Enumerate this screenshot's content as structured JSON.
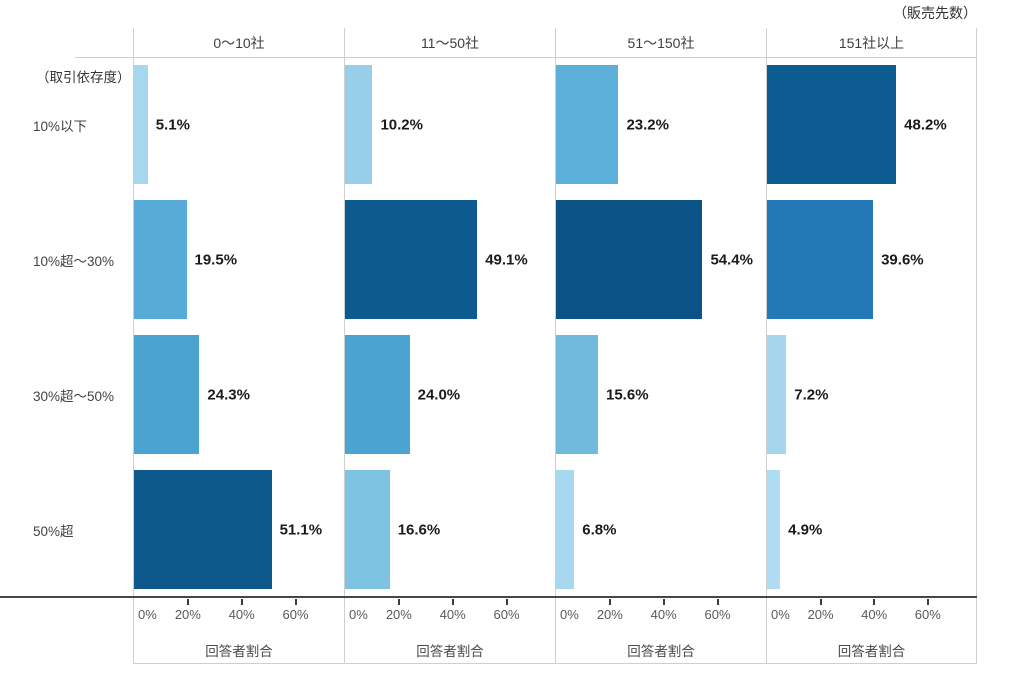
{
  "chart_data": {
    "type": "bar",
    "orientation": "horizontal",
    "corner_note": "（販売先数）",
    "y_axis_note": "（取引依存度）",
    "categories": [
      "10%以下",
      "10%超〜30%",
      "30%超〜50%",
      "50%超"
    ],
    "xlabel": "回答者割合",
    "x_ticks": [
      "0%",
      "20%",
      "40%",
      "60%"
    ],
    "x_tick_values": [
      0,
      20,
      40,
      60
    ],
    "xlim": [
      0,
      78
    ],
    "grid": false,
    "legend": false,
    "color_encoding": "darker blue = larger value",
    "panels": [
      {
        "title": "0〜10社",
        "values": [
          5.1,
          19.5,
          24.3,
          51.1
        ],
        "labels": [
          "5.1%",
          "19.5%",
          "24.3%",
          "51.1%"
        ],
        "colors": [
          "#a7d7ef",
          "#58abd6",
          "#4ba4cf",
          "#0e598c"
        ]
      },
      {
        "title": "11〜50社",
        "values": [
          10.2,
          49.1,
          24.0,
          16.6
        ],
        "labels": [
          "10.2%",
          "49.1%",
          "24.0%",
          "16.6%"
        ],
        "colors": [
          "#97cfeb",
          "#0d5a8f",
          "#4ba4cf",
          "#7fc3e3"
        ]
      },
      {
        "title": "51〜150社",
        "values": [
          23.2,
          54.4,
          15.6,
          6.8
        ],
        "labels": [
          "23.2%",
          "54.4%",
          "15.6%",
          "6.8%"
        ],
        "colors": [
          "#5cafd9",
          "#0b5384",
          "#71bade",
          "#a8d8f0"
        ]
      },
      {
        "title": "151社以上",
        "values": [
          48.2,
          39.6,
          7.2,
          4.9
        ],
        "labels": [
          "48.2%",
          "39.6%",
          "7.2%",
          "4.9%"
        ],
        "colors": [
          "#0e5d92",
          "#2279b5",
          "#a6d6ee",
          "#b0dcf3"
        ]
      }
    ]
  }
}
